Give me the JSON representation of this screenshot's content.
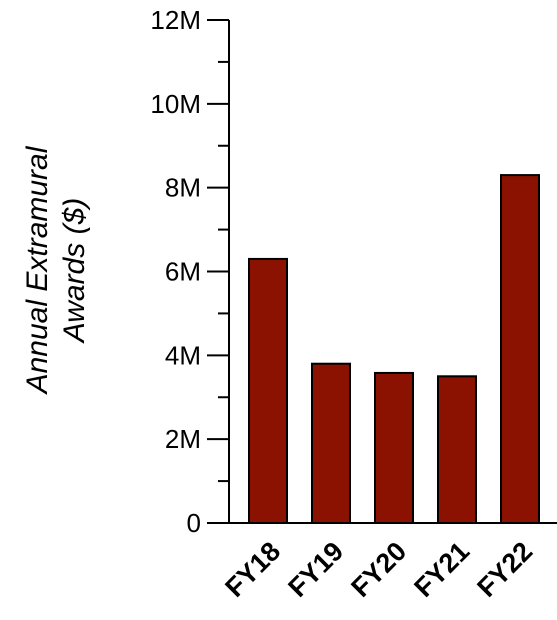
{
  "chart_data": {
    "type": "bar",
    "title": "",
    "xlabel": "",
    "ylabel_lines": [
      "Annual Extramural",
      "Awards ($)"
    ],
    "categories": [
      "FY18",
      "FY19",
      "FY20",
      "FY21",
      "FY22"
    ],
    "values": [
      6300000,
      3800000,
      3580000,
      3500000,
      8300000
    ],
    "ylim": [
      0,
      12000000
    ],
    "yticks": [
      {
        "value": 0,
        "label": "0"
      },
      {
        "value": 2000000,
        "label": "2M"
      },
      {
        "value": 4000000,
        "label": "4M"
      },
      {
        "value": 6000000,
        "label": "6M"
      },
      {
        "value": 8000000,
        "label": "8M"
      },
      {
        "value": 10000000,
        "label": "10M"
      },
      {
        "value": 12000000,
        "label": "12M"
      }
    ],
    "minor_ticks": [
      1000000,
      3000000,
      5000000,
      7000000,
      9000000,
      11000000
    ],
    "grid": false,
    "legend": "none",
    "colors": {
      "bar_fill": "#8B1200",
      "bar_stroke": "#000000",
      "axis": "#000000"
    }
  }
}
